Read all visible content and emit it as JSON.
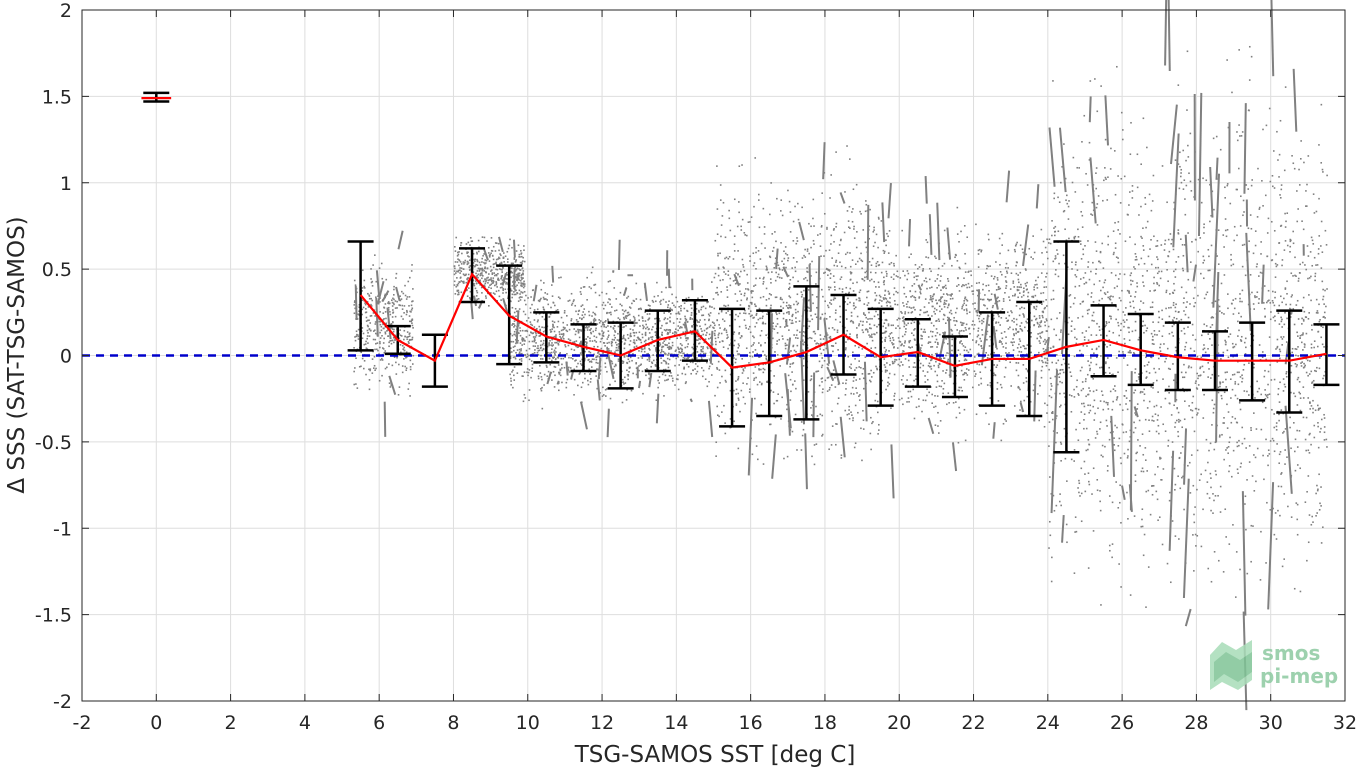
{
  "chart_data": {
    "type": "scatter",
    "xlabel": "TSG-SAMOS SST [deg C]",
    "ylabel": "Δ SSS (SAT-TSG-SAMOS)",
    "xlim": [
      -2,
      32
    ],
    "ylim": [
      -2,
      2
    ],
    "x_ticks": [
      "-2",
      "0",
      "2",
      "4",
      "6",
      "8",
      "10",
      "12",
      "14",
      "16",
      "18",
      "20",
      "22",
      "24",
      "26",
      "28",
      "30",
      "32"
    ],
    "y_ticks": [
      "2",
      "1.5",
      "1",
      "0.5",
      "0",
      "-0.5",
      "-1",
      "-1.5",
      "-2"
    ],
    "grid": true,
    "reference_line": {
      "y": 0,
      "style": "dashed",
      "color": "#0000cc"
    },
    "colors": {
      "scatter": "#808080",
      "mean_line": "#ff0000",
      "error_bars": "#000000"
    },
    "scatter_cloud": [
      {
        "x_start": 5.3,
        "x_end": 6.9,
        "y_low": -0.28,
        "y_high": 0.62
      },
      {
        "x_start": 8.0,
        "x_end": 9.9,
        "y_low": 0.25,
        "y_high": 0.72
      },
      {
        "x_start": 9.5,
        "x_end": 15.0,
        "y_low": -0.32,
        "y_high": 0.52
      },
      {
        "x_start": 15.0,
        "x_end": 19.5,
        "y_low": -0.75,
        "y_high": 1.22
      },
      {
        "x_start": 19.5,
        "x_end": 24.0,
        "y_low": -0.55,
        "y_high": 0.9
      },
      {
        "x_start": 24.0,
        "x_end": 31.5,
        "y_low": -1.6,
        "y_high": 1.8
      }
    ],
    "series": [
      {
        "x": [
          5.5,
          6.5,
          7.5,
          8.5,
          9.5,
          10.5,
          11.5,
          12.5,
          13.5,
          14.5,
          15.5,
          16.5,
          17.5,
          18.5,
          19.5,
          20.5,
          21.5,
          22.5,
          23.5,
          24.5,
          25.5,
          26.5,
          27.5,
          28.5,
          29.5,
          30.5,
          31.5
        ],
        "mean": [
          0.35,
          0.09,
          -0.03,
          0.47,
          0.23,
          0.11,
          0.05,
          0.0,
          0.09,
          0.14,
          -0.07,
          -0.04,
          0.02,
          0.12,
          -0.01,
          0.02,
          -0.06,
          -0.02,
          -0.02,
          0.05,
          0.09,
          0.03,
          -0.01,
          -0.03,
          -0.03,
          -0.03,
          0.01
        ],
        "lower": [
          0.03,
          0.01,
          -0.18,
          0.31,
          -0.05,
          -0.04,
          -0.09,
          -0.19,
          -0.09,
          -0.03,
          -0.41,
          -0.35,
          -0.37,
          -0.11,
          -0.29,
          -0.18,
          -0.24,
          -0.29,
          -0.35,
          -0.56,
          -0.12,
          -0.17,
          -0.2,
          -0.2,
          -0.26,
          -0.33,
          -0.17
        ],
        "upper": [
          0.66,
          0.17,
          0.12,
          0.62,
          0.52,
          0.25,
          0.18,
          0.19,
          0.26,
          0.32,
          0.27,
          0.26,
          0.4,
          0.35,
          0.27,
          0.21,
          0.11,
          0.25,
          0.31,
          0.66,
          0.29,
          0.24,
          0.19,
          0.14,
          0.19,
          0.26,
          0.18
        ]
      },
      {
        "x": [
          0
        ],
        "mean": [
          1.49
        ],
        "lower": [
          1.47
        ],
        "upper": [
          1.52
        ]
      }
    ]
  },
  "watermark": {
    "line1": "smos",
    "line2": "pi-mep"
  }
}
